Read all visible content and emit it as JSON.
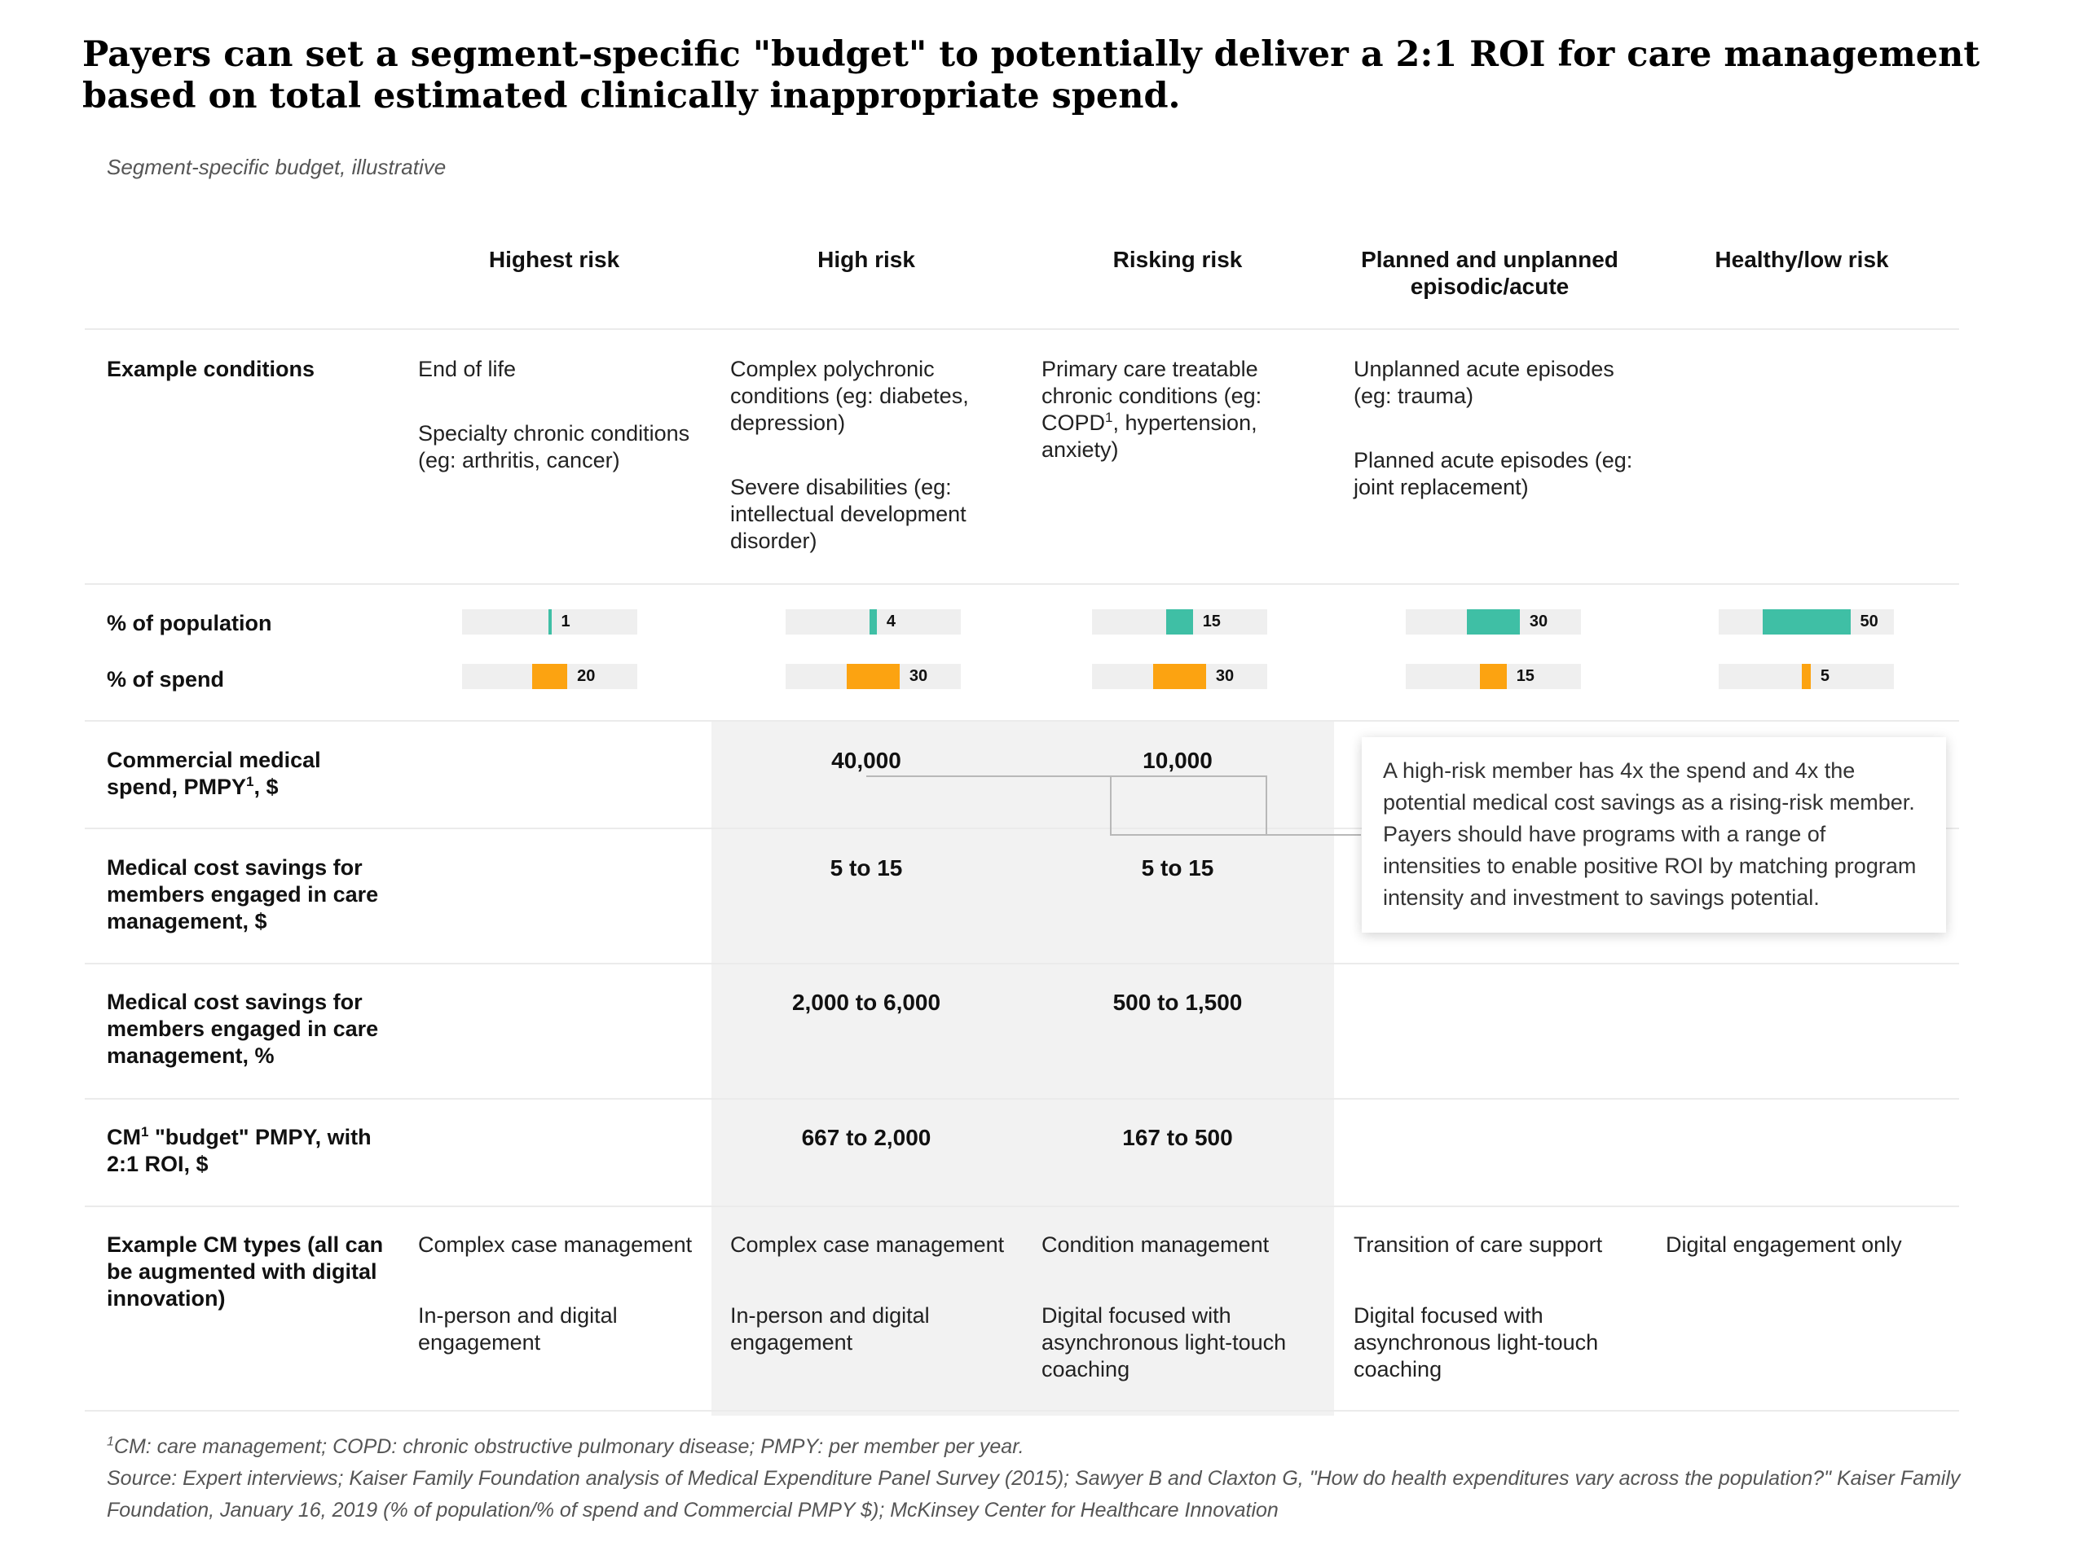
{
  "title": "Payers can set a segment-specific \"budget\" to potentially deliver a 2:1 ROI for care management based on total estimated clinically inappropriate spend.",
  "subtitle": "Segment-specific budget, illustrative",
  "columns": [
    "Highest risk",
    "High risk",
    "Risking risk",
    "Planned and unplanned episodic/acute",
    "Healthy/low risk"
  ],
  "row_labels": {
    "example_conditions": "Example conditions",
    "pct_population": "% of population",
    "pct_spend": "% of spend",
    "commercial_spend_main": "Commercial medical spend, PMPY",
    "commercial_spend_sup": "1",
    "commercial_spend_tail": ", $",
    "savings_dollar": "Medical cost savings for members engaged in care management, $",
    "savings_pct": "Medical cost savings for members engaged in care management, %",
    "budget_prefix": "CM",
    "budget_sup": "1",
    "budget_main": " \"budget\" PMPY, with 2:1 ROI, $",
    "cm_types": "Example CM types (all can be augmented with digital innovation)"
  },
  "example_conditions": {
    "highest": [
      "End of life",
      "Specialty chronic conditions (eg: arthritis, cancer)"
    ],
    "high": [
      "Complex polychronic conditions (eg: diabetes, depression)",
      "Severe disabilities (eg: intellectual development disorder)"
    ],
    "rising_pre": "Primary care treatable chronic conditions (eg: COPD",
    "rising_sup": "1",
    "rising_post": ", hypertension, anxiety)",
    "episodic": [
      "Unplanned acute episodes (eg: trauma)",
      "Planned acute episodes (eg: joint replacement)"
    ]
  },
  "population_pct": [
    1,
    4,
    15,
    30,
    50
  ],
  "spend_pct": [
    20,
    30,
    30,
    15,
    5
  ],
  "population_labels": [
    "1",
    "4",
    "15",
    "30",
    "50"
  ],
  "spend_labels": [
    "20",
    "30",
    "30",
    "15",
    "5"
  ],
  "colors": {
    "population": "#3fbfa5",
    "spend": "#fca311",
    "bar_bg": "#efefef",
    "shade": "#f2f2f2"
  },
  "values": {
    "commercial_spend": [
      "40,000",
      "10,000"
    ],
    "savings_dollar": [
      "5 to 15",
      "5 to 15"
    ],
    "savings_pct": [
      "2,000 to 6,000",
      "500 to 1,500"
    ],
    "budget": [
      "667 to 2,000",
      "167 to 500"
    ]
  },
  "callout": "A high-risk member has 4x the spend and 4x the potential medical cost savings as a rising-risk member. Payers should have programs with a range of intensities to enable positive ROI by matching program intensity and investment to savings potential.",
  "cm_types": {
    "highest": [
      "Complex case management",
      "In-person and digital engagement"
    ],
    "high": [
      "Complex case management",
      "In-person and digital engagement"
    ],
    "rising": [
      "Condition management",
      "Digital focused with asynchronous light-touch coaching"
    ],
    "episodic": [
      "Transition of care support",
      "Digital focused with asynchronous light-touch coaching"
    ],
    "healthy": [
      "Digital engagement only"
    ]
  },
  "footnote_sup": "1",
  "footnote_1": "CM: care management; COPD: chronic obstructive pulmonary disease; PMPY: per member per year.",
  "source": "Source: Expert interviews; Kaiser Family Foundation analysis of Medical Expenditure Panel Survey (2015); Sawyer B and Claxton G, \"How do health expenditures vary across the population?\" Kaiser Family Foundation, January 16, 2019 (% of population/% of spend and Commercial PMPY $); McKinsey Center for Healthcare Innovation"
}
